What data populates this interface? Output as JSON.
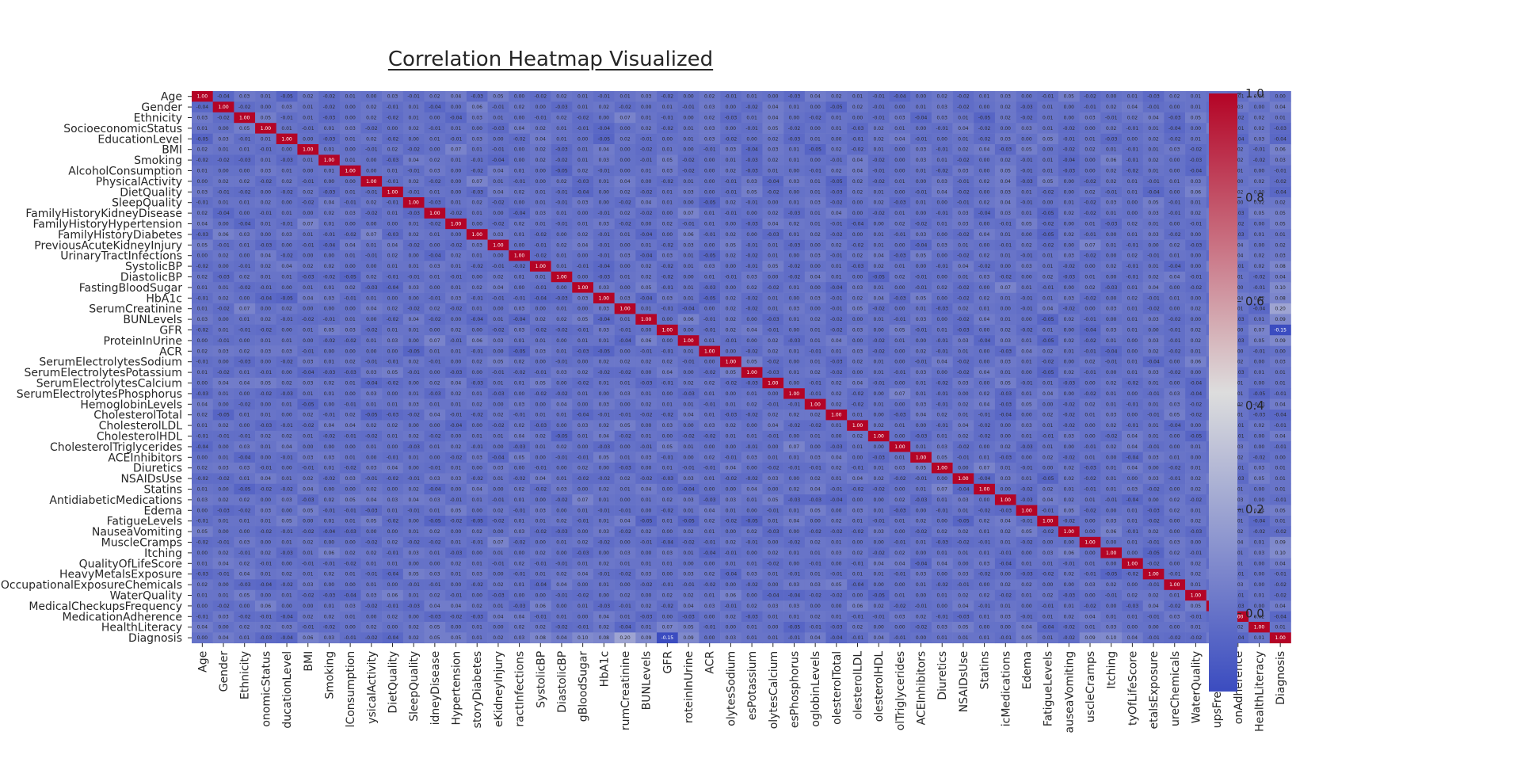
{
  "chart_data": {
    "type": "heatmap",
    "title": "Correlation Heatmap Visualized",
    "labels": [
      "Age",
      "Gender",
      "Ethnicity",
      "SocioeconomicStatus",
      "EducationLevel",
      "BMI",
      "Smoking",
      "AlcoholConsumption",
      "PhysicalActivity",
      "DietQuality",
      "SleepQuality",
      "FamilyHistoryKidneyDisease",
      "FamilyHistoryHypertension",
      "FamilyHistoryDiabetes",
      "PreviousAcuteKidneyInjury",
      "UrinaryTractInfections",
      "SystolicBP",
      "DiastolicBP",
      "FastingBloodSugar",
      "HbA1c",
      "SerumCreatinine",
      "BUNLevels",
      "GFR",
      "ProteinInUrine",
      "ACR",
      "SerumElectrolytesSodium",
      "SerumElectrolytesPotassium",
      "SerumElectrolytesCalcium",
      "SerumElectrolytesPhosphorus",
      "HemoglobinLevels",
      "CholesterolTotal",
      "CholesterolLDL",
      "CholesterolHDL",
      "CholesterolTriglycerides",
      "ACEInhibitors",
      "Diuretics",
      "NSAIDsUse",
      "Statins",
      "AntidiabeticMedications",
      "Edema",
      "FatigueLevels",
      "NauseaVomiting",
      "MuscleCramps",
      "Itching",
      "QualityOfLifeScore",
      "HeavyMetalsExposure",
      "OccupationalExposureChemicals",
      "WaterQuality",
      "MedicalCheckupsFrequency",
      "MedicationAdherence",
      "HealthLiteracy",
      "Diagnosis"
    ],
    "x_tick_labels": [
      "Age",
      "Gender",
      "Ethnicity",
      "onomicStatus",
      "ducationLevel",
      "BMI",
      "Smoking",
      "lConsumption",
      "ysicalActivity",
      "DietQuality",
      "SleepQuality",
      "idneyDisease",
      "Hypertension",
      "storyDiabetes",
      "eKidneyInjury",
      "ractInfections",
      "SystolicBP",
      "DiastolicBP",
      "gBloodSugar",
      "HbA1c",
      "rumCreatinine",
      "BUNLevels",
      "GFR",
      "roteinInUrine",
      "ACR",
      "olytesSodium",
      "esPotassium",
      "olytesCalcium",
      "esPhosphorus",
      "oglobinLevels",
      "olesterolTotal",
      "olesterolLDL",
      "olesterolHDL",
      "olTriglycerides",
      "ACEInhibitors",
      "Diuretics",
      "NSAIDsUse",
      "Statins",
      "icMedications",
      "Edema",
      "FatigueLevels",
      "auseaVomiting",
      "uscleCramps",
      "Itching",
      "tyOfLifeScore",
      "etalsExposure",
      "ureChemicals",
      "WaterQuality",
      "upsFrequency",
      "onAdherence",
      "HealthLiteracy",
      "Diagnosis"
    ],
    "diagnosis_correlations": [
      0.0,
      0.04,
      0.01,
      -0.03,
      -0.04,
      0.06,
      0.03,
      -0.01,
      -0.02,
      -0.04,
      0.02,
      0.05,
      0.05,
      0.01,
      0.02,
      0.03,
      0.08,
      0.04,
      0.1,
      0.08,
      0.2,
      0.09,
      -0.15,
      0.09,
      0.0,
      0.03,
      0.01,
      0.01,
      -0.01,
      0.04,
      -0.04,
      -0.01,
      0.04,
      -0.01,
      0.0,
      0.01,
      0.01,
      0.01,
      -0.01,
      0.05,
      0.01,
      -0.02,
      0.09,
      0.1,
      0.04,
      -0.01,
      -0.02,
      -0.02,
      0.04,
      -0.04,
      0.01,
      1.0
    ],
    "off_diagonal_values": [
      -0.04,
      0.03,
      0.01,
      -0.05,
      0.02,
      -0.02,
      0.01,
      0.0,
      0.03,
      -0.01,
      0.02,
      0.04,
      -0.03,
      0.05,
      0.0,
      -0.02,
      0.02,
      0.01,
      -0.01,
      0.01,
      0.03,
      -0.02,
      0.0,
      0.02,
      -0.01,
      0.01,
      0.0,
      -0.03,
      0.04,
      0.02,
      0.01,
      -0.01,
      -0.04,
      0.0,
      0.02,
      -0.02,
      0.01,
      0.03,
      0.0,
      -0.01,
      0.05,
      -0.02,
      0.0,
      0.01,
      -0.03,
      0.02,
      0.01,
      0.0,
      -0.01,
      0.04,
      -0.02,
      0.0,
      0.03,
      0.01,
      -0.02,
      0.0,
      0.02,
      -0.01,
      0.01,
      -0.04,
      0.0,
      0.06,
      -0.01,
      0.02,
      0.0,
      -0.03,
      0.01,
      0.02,
      -0.02,
      0.0,
      0.01,
      -0.01,
      0.03,
      0.0,
      -0.02,
      0.04,
      0.01,
      0.0,
      -0.05,
      0.02,
      -0.01,
      0.0,
      0.01,
      0.03,
      -0.02,
      0.0,
      0.02,
      -0.03,
      0.01,
      0.0,
      -0.01,
      0.02,
      0.04,
      -0.01,
      0.0,
      0.01,
      -0.02,
      0.03,
      0.0,
      0.05,
      -0.01,
      0.01,
      -0.03,
      0.0,
      0.02,
      -0.02,
      0.01,
      0.0,
      -0.04,
      0.03,
      0.01,
      0.0,
      -0.01,
      0.02,
      -0.02,
      0.0,
      0.07,
      0.01,
      -0.01,
      0.0,
      0.02,
      -0.03,
      0.01,
      0.04,
      0.0,
      -0.02,
      0.01,
      0.0,
      -0.01,
      0.03
    ],
    "colorbar_ticks": [
      1.0,
      0.8,
      0.6,
      0.4,
      0.2,
      0.0
    ],
    "vmin": -0.15,
    "vmax": 1.0,
    "colormap": "coolwarm",
    "colors": {
      "low": "#3b4cc0",
      "mid": "#dddddd",
      "high": "#b40426"
    }
  }
}
